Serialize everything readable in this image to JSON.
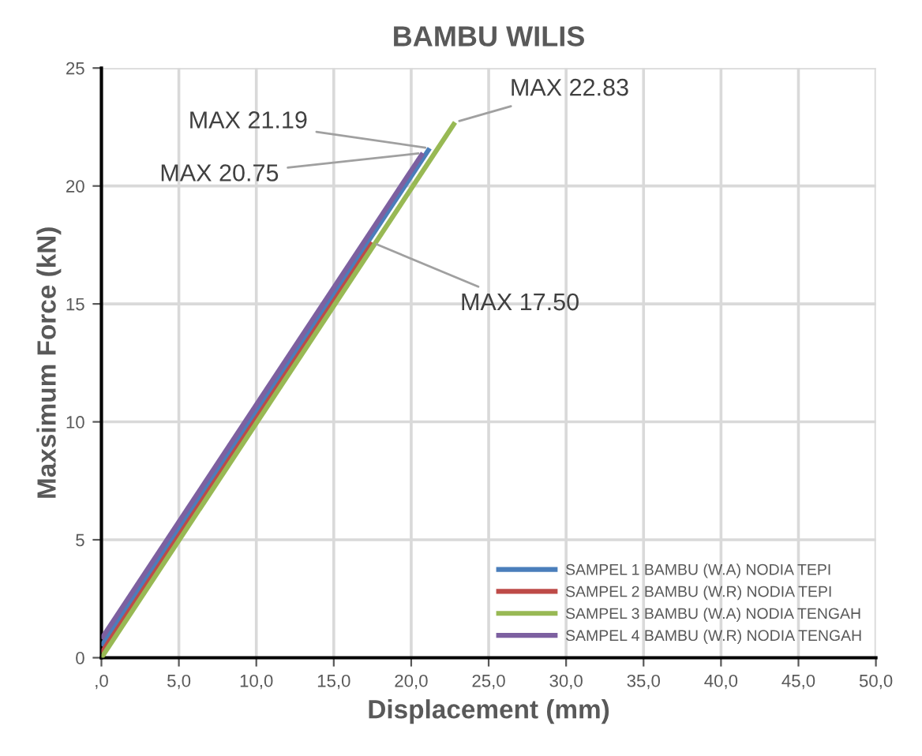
{
  "chart_data": {
    "type": "line",
    "title": "BAMBU WILIS",
    "xlabel": "Displacement (mm)",
    "ylabel": "Maxsimum Force (kN)",
    "series": [
      {
        "name": "SAMPEL 1 BAMBU (W.A) NODIA TEPI",
        "color": "#4a7ebb",
        "x": [
          0,
          21.19
        ],
        "values": [
          0.5,
          21.6
        ]
      },
      {
        "name": "SAMPEL 2 BAMBU (W.R) NODIA TEPI",
        "color": "#be4b48",
        "x": [
          0,
          17.5
        ],
        "values": [
          0.2,
          17.6
        ]
      },
      {
        "name": "SAMPEL 3 BAMBU (W.A) NODIA TENGAH",
        "color": "#98b954",
        "x": [
          0,
          22.83
        ],
        "values": [
          0,
          22.7
        ]
      },
      {
        "name": "SAMPEL 4 BAMBU (W.R) NODIA TENGAH",
        "color": "#7d60a0",
        "x": [
          0,
          20.75
        ],
        "values": [
          0.8,
          21.4
        ]
      }
    ],
    "annotations": [
      {
        "text": "MAX 21.19",
        "x": 21.19,
        "y": 21.6
      },
      {
        "text": "MAX 20.75",
        "x": 20.75,
        "y": 21.4
      },
      {
        "text": "MAX 17.50",
        "x": 17.5,
        "y": 17.6
      },
      {
        "text": "MAX 22.83",
        "x": 22.83,
        "y": 22.7
      }
    ],
    "xlim": [
      0,
      50
    ],
    "ylim": [
      0,
      25
    ],
    "xticks": [
      {
        "value": 0,
        "label": ",0"
      },
      {
        "value": 5,
        "label": "5,0"
      },
      {
        "value": 10,
        "label": "10,0"
      },
      {
        "value": 15,
        "label": "15,0"
      },
      {
        "value": 20,
        "label": "20,0"
      },
      {
        "value": 25,
        "label": "25,0"
      },
      {
        "value": 30,
        "label": "30,0"
      },
      {
        "value": 35,
        "label": "35,0"
      },
      {
        "value": 40,
        "label": "40,0"
      },
      {
        "value": 45,
        "label": "45,0"
      },
      {
        "value": 50,
        "label": "50,0"
      }
    ],
    "yticks": [
      0,
      5,
      10,
      15,
      20,
      25
    ],
    "grid": true,
    "legend": "bottom right",
    "marker": "none",
    "line_style": "solid"
  }
}
